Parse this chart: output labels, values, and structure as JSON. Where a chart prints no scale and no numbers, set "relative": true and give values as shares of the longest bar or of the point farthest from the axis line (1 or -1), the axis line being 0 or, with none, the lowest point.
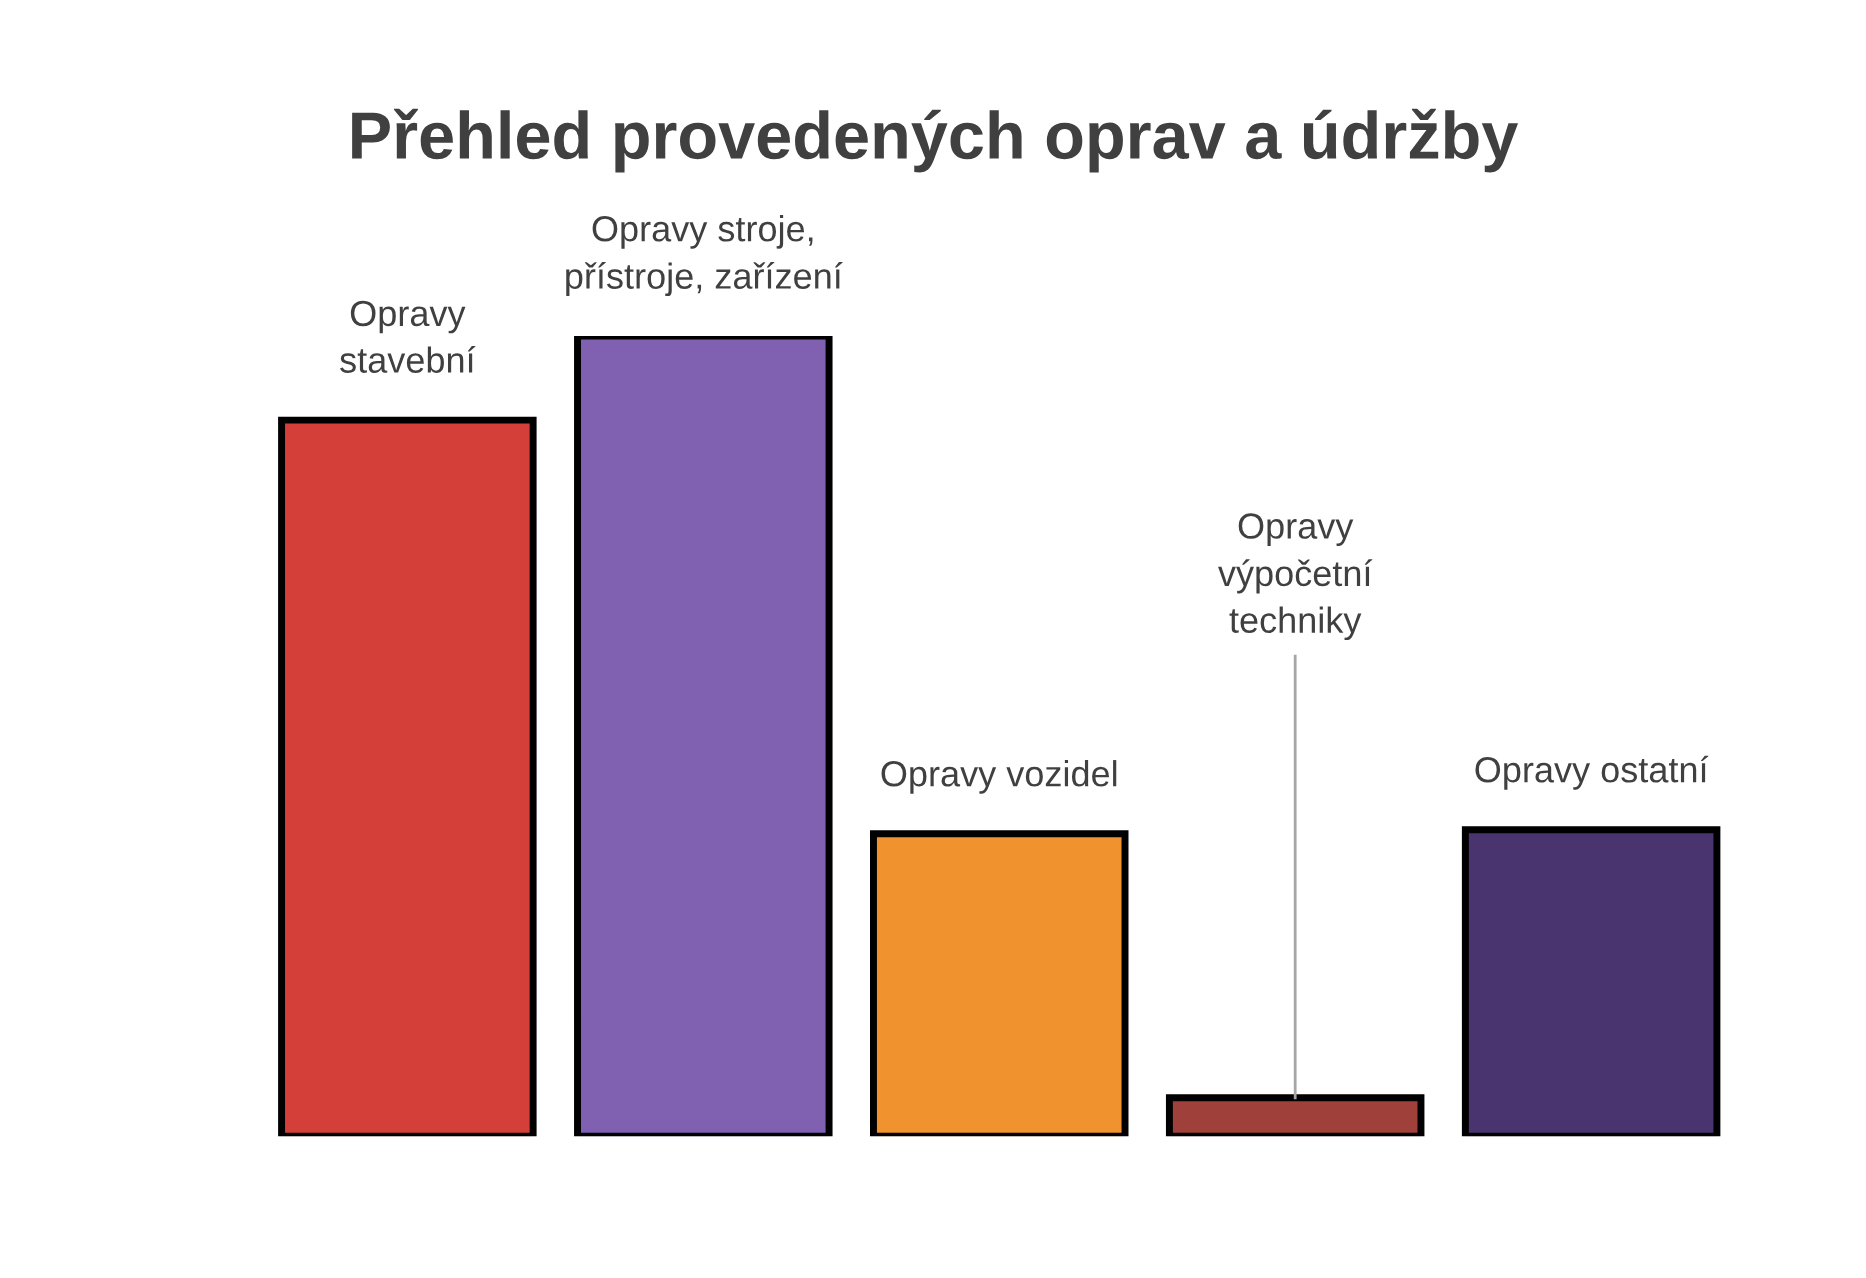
{
  "chart_data": {
    "type": "bar",
    "title": "Přehled provedených oprav a údržby",
    "categories": [
      "Opravy\nstavební",
      "Opravy stroje,\npřístroje, zařízení",
      "Opravy vozidel",
      "Opravy\nvýpočetní\ntechniky",
      "Opravy ostatní"
    ],
    "values": [
      0.895,
      1,
      0.378,
      0.048,
      0.383
    ],
    "colors": [
      "#d43f3a",
      "#8060b0",
      "#f0922e",
      "#a0403a",
      "#4a3470"
    ],
    "relative": true
  }
}
